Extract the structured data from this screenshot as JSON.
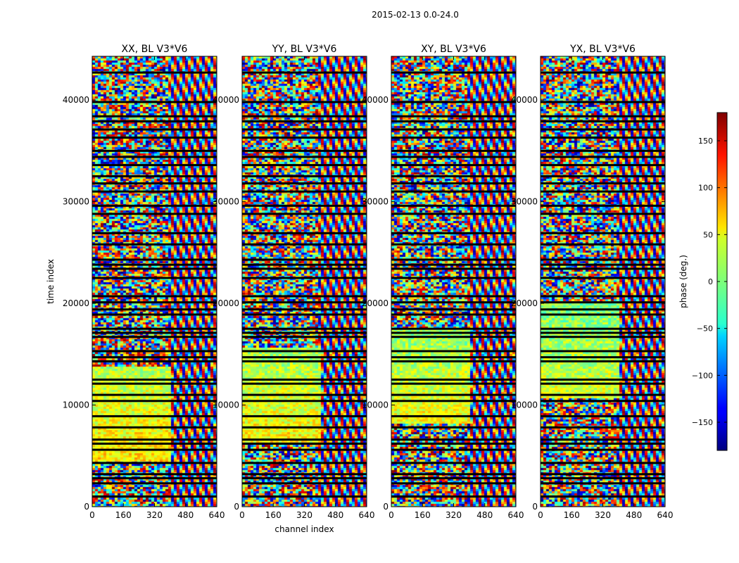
{
  "chart_data": {
    "type": "heatmap",
    "suptitle": "2015-02-13 0.0-24.0",
    "xlabel": "channel index",
    "ylabel": "time index",
    "xlim": [
      0,
      640
    ],
    "ylim": [
      0,
      44300
    ],
    "xticks": [
      0,
      160,
      320,
      480,
      640
    ],
    "yticks": [
      0,
      10000,
      20000,
      30000,
      40000
    ],
    "colorscale": "jet",
    "panels": [
      {
        "title": "XX, BL V3*V6"
      },
      {
        "title": "YY, BL V3*V6"
      },
      {
        "title": "XY, BL V3*V6"
      },
      {
        "title": "YX, BL V3*V6"
      }
    ],
    "colorbar": {
      "label": "phase (deg.)",
      "range": [
        -180,
        180
      ],
      "ticks": [
        -150,
        -100,
        -50,
        0,
        50,
        100,
        150
      ],
      "tick_labels": [
        "−150",
        "−100",
        "−50",
        "0",
        "50",
        "100",
        "150"
      ]
    },
    "gap_rows": [
      1000,
      2300,
      2800,
      3200,
      4300,
      5600,
      6200,
      6600,
      7800,
      8900,
      10400,
      11000,
      12100,
      12500,
      14300,
      14700,
      15300,
      16700,
      17100,
      17500,
      18900,
      19400,
      20100,
      20700,
      22500,
      23400,
      23800,
      24300,
      25800,
      26900,
      28800,
      29600,
      31000,
      31800,
      32500,
      33600,
      34400,
      35000,
      36300,
      37100,
      37900,
      38400,
      39800,
      42700
    ]
  }
}
